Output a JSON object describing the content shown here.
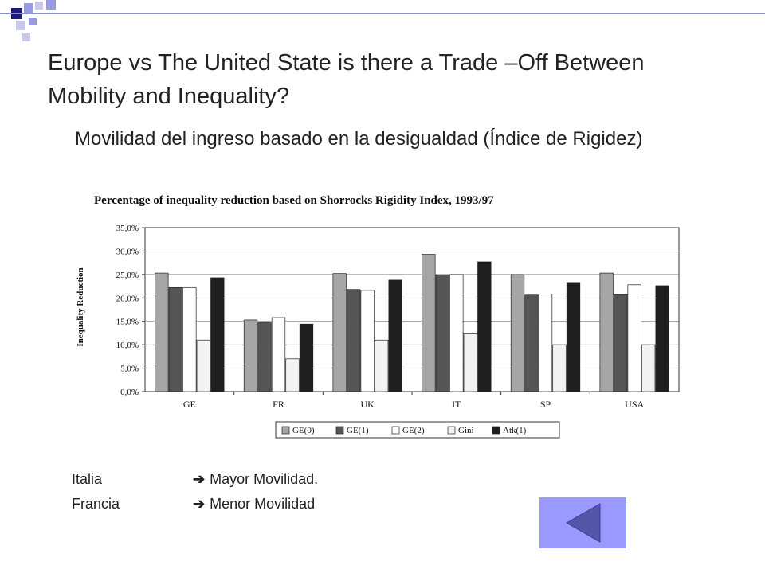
{
  "slide": {
    "title": "Europe vs The United State is there a Trade –Off Between Mobility and Inequality?",
    "subtitle": "Movilidad del ingreso basado en la desigualdad (Índice de Rigidez)",
    "notes": [
      {
        "country": "Italia",
        "arrow": "➔",
        "text": "Mayor Movilidad."
      },
      {
        "country": "Francia",
        "arrow": "➔",
        "text": "Menor Movilidad"
      }
    ],
    "nav_button_icon": "back-triangle-icon"
  },
  "colors": {
    "deco_dark": "#1c1c80",
    "deco_light": "#9a9ae0",
    "nav_button": "#9999ff",
    "nav_icon": "#5555aa"
  },
  "chart_data": {
    "type": "bar",
    "title": "Percentage of inequality reduction based on Shorrocks Rigidity Index, 1993/97",
    "ylabel": "Inequality Reduction",
    "xlabel": "",
    "categories": [
      "GE",
      "FR",
      "UK",
      "IT",
      "SP",
      "USA"
    ],
    "ylim": [
      0,
      35
    ],
    "yticks": [
      "0,0%",
      "5,0%",
      "10,0%",
      "15,0%",
      "20,0%",
      "25,0%",
      "30,0%",
      "35,0%"
    ],
    "ytick_values": [
      0,
      5,
      10,
      15,
      20,
      25,
      30,
      35
    ],
    "grid": true,
    "legend_position": "bottom",
    "series": [
      {
        "name": "GE(0)",
        "color": "#a6a6a6",
        "values": [
          25.3,
          15.3,
          25.2,
          29.3,
          25.0,
          25.3
        ]
      },
      {
        "name": "GE(1)",
        "color": "#555555",
        "values": [
          22.2,
          14.7,
          21.8,
          24.9,
          20.6,
          20.7
        ]
      },
      {
        "name": "GE(2)",
        "color": "#ffffff",
        "values": [
          22.2,
          15.8,
          21.6,
          25.0,
          20.8,
          22.8
        ]
      },
      {
        "name": "Gini",
        "color": "#f3f3f3",
        "values": [
          11.0,
          7.0,
          11.0,
          12.3,
          10.0,
          10.0
        ]
      },
      {
        "name": "Atk(1)",
        "color": "#1e1e1e",
        "values": [
          24.3,
          14.4,
          23.8,
          27.7,
          23.3,
          22.6
        ]
      }
    ]
  }
}
